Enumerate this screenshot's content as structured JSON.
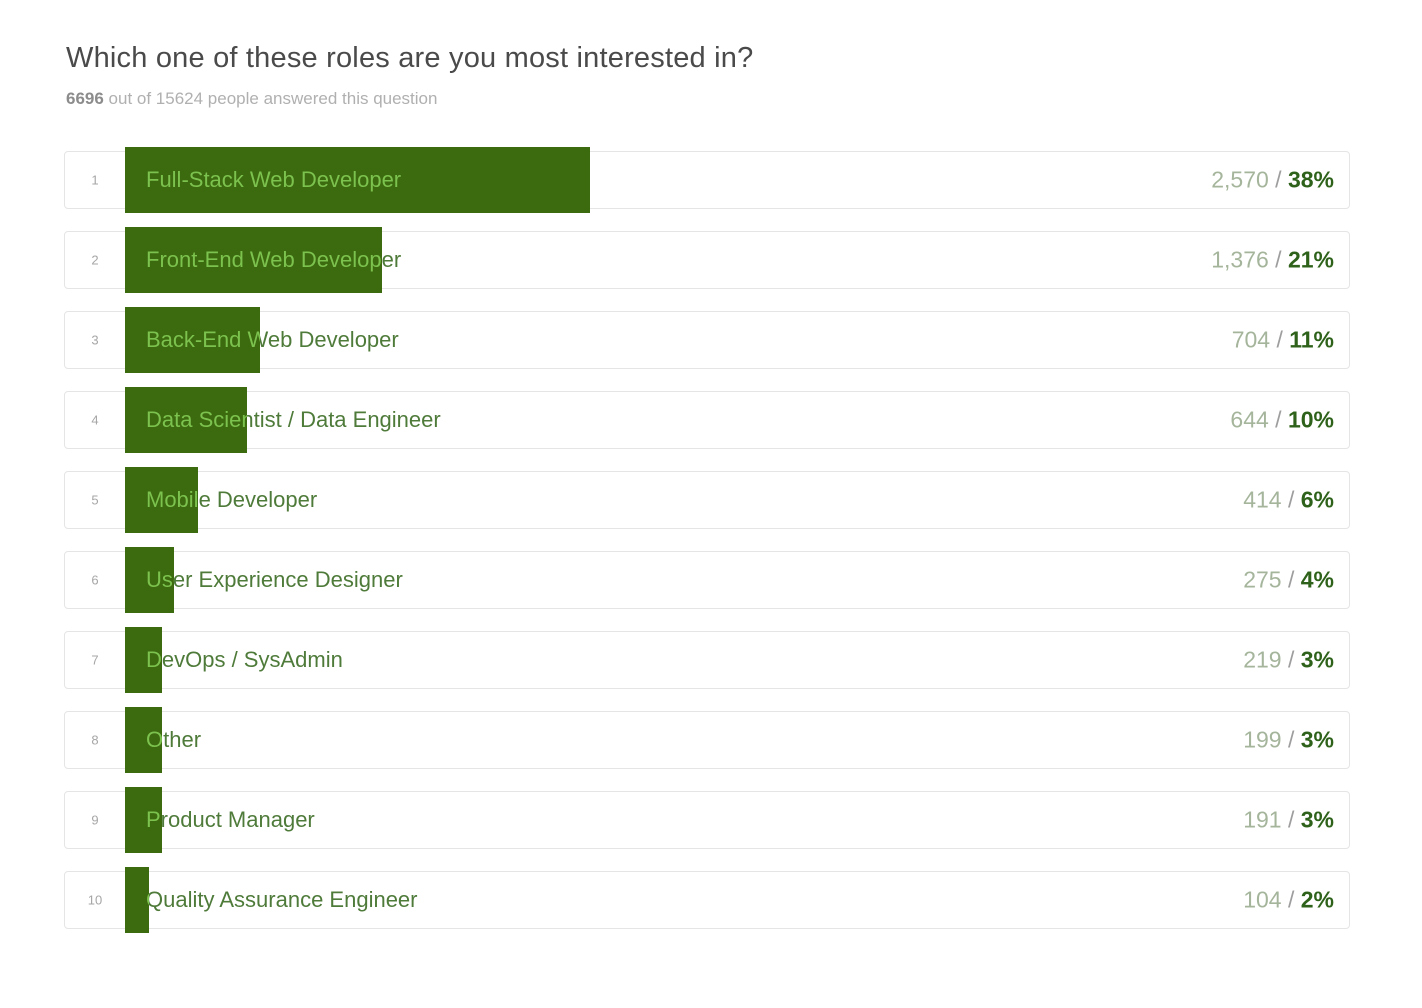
{
  "header": {
    "title": "Which one of these roles are you most interested in?",
    "answered_count": "6696",
    "answered_rest": " out of 15624 people answered this question"
  },
  "chart_data": {
    "type": "bar",
    "title": "Which one of these roles are you most interested in?",
    "total_answered": 6696,
    "total_people": 15624,
    "orientation": "horizontal",
    "xlim_percent": [
      0,
      100
    ],
    "grid": false,
    "legend": "none",
    "categories": [
      "Full-Stack Web Developer",
      "Front-End Web Developer",
      "Back-End Web Developer",
      "Data Scientist / Data Engineer",
      "Mobile Developer",
      "User Experience Designer",
      "DevOps / SysAdmin",
      "Other",
      "Product Manager",
      "Quality Assurance Engineer"
    ],
    "ranks": [
      "1",
      "2",
      "3",
      "4",
      "5",
      "6",
      "7",
      "8",
      "9",
      "10"
    ],
    "values": [
      2570,
      1376,
      704,
      644,
      414,
      275,
      219,
      199,
      191,
      104
    ],
    "percents": [
      38,
      21,
      11,
      10,
      6,
      4,
      3,
      3,
      3,
      2
    ],
    "value_labels": [
      "2,570",
      "1,376",
      "704",
      "644",
      "414",
      "275",
      "219",
      "199",
      "191",
      "104"
    ],
    "percent_labels": [
      "38%",
      "21%",
      "11%",
      "10%",
      "6%",
      "4%",
      "3%",
      "3%",
      "3%",
      "2%"
    ],
    "separator": " / ",
    "colors": {
      "bar": "#3c6a0f",
      "label_on_bar": "#7cc24e",
      "label_off_bar": "#4f7b3a",
      "count_text": "#a5b59b",
      "percent_text": "#2e621a",
      "row_border": "#e5e5e5"
    }
  }
}
